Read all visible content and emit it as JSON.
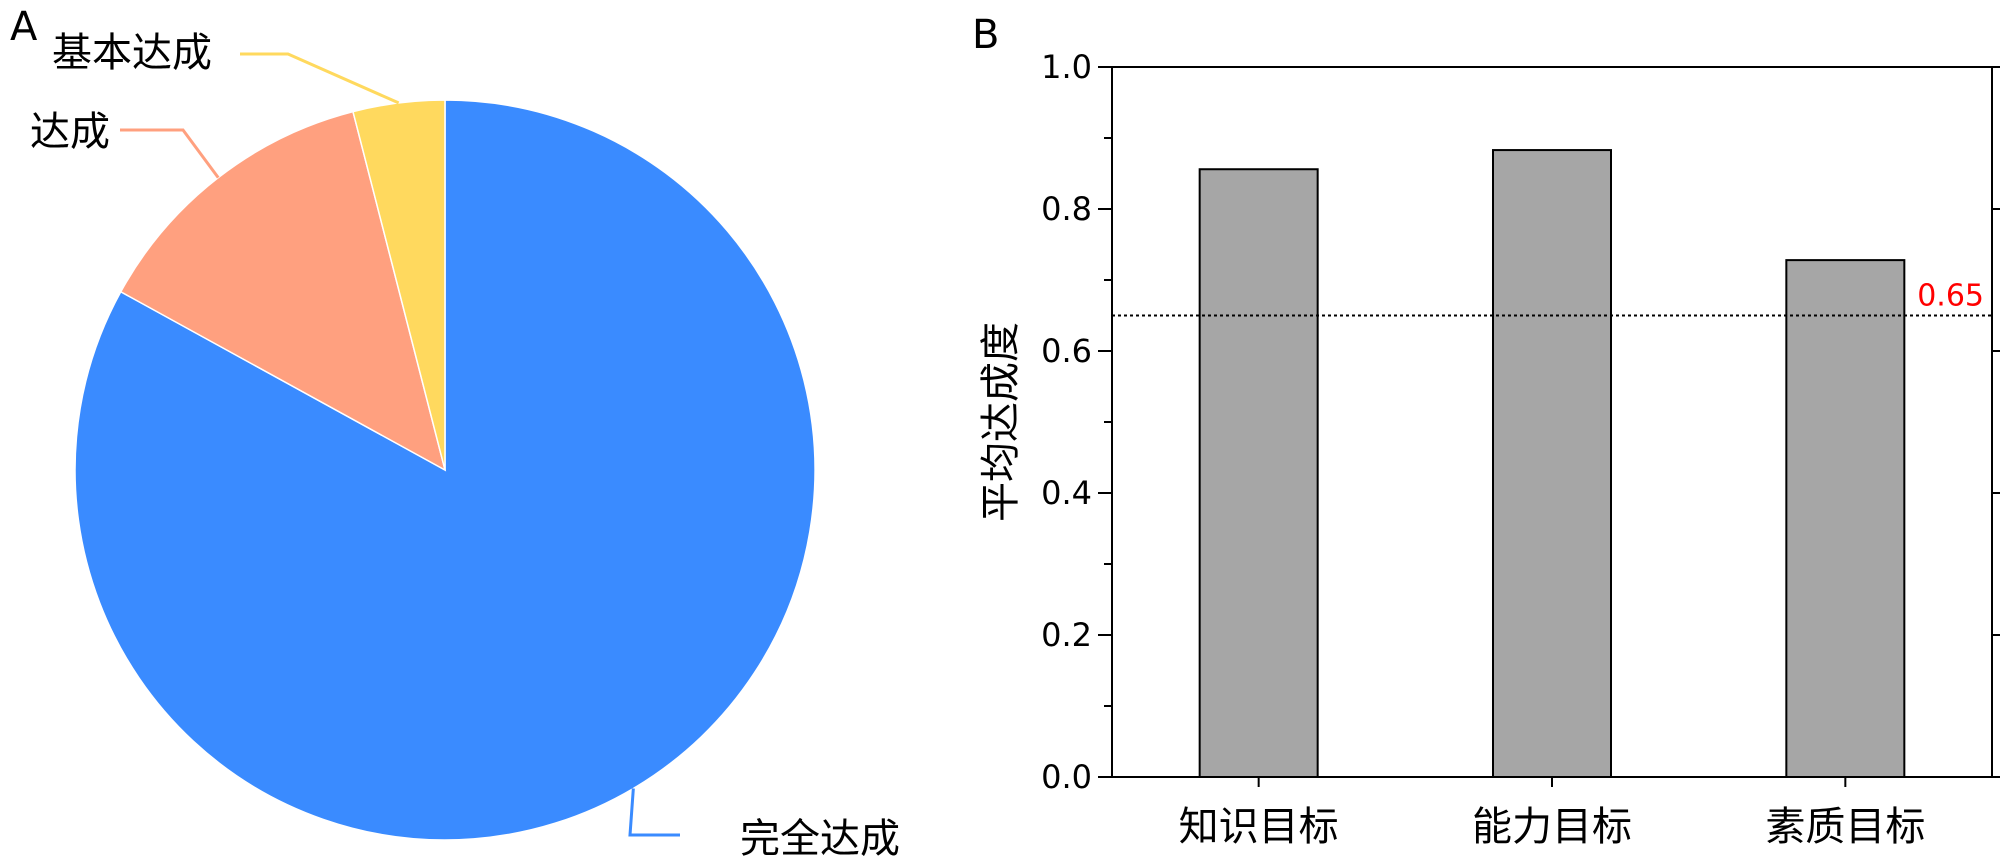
{
  "chart_data": [
    {
      "panel": "A",
      "type": "pie",
      "title": "",
      "start_angle_deg": 0,
      "direction": "clockwise",
      "slices": [
        {
          "label": "完全达成",
          "value": 83,
          "color": "#3a8bff"
        },
        {
          "label": "达成",
          "value": 13,
          "color": "#ffa07f"
        },
        {
          "label": "基本达成",
          "value": 4,
          "color": "#ffd95e"
        }
      ]
    },
    {
      "panel": "B",
      "type": "bar",
      "title": "",
      "xlabel": "",
      "ylabel": "平均达成度",
      "categories": [
        "知识目标",
        "能力目标",
        "素质目标"
      ],
      "values": [
        0.856,
        0.883,
        0.728
      ],
      "bar_color": "#a6a6a6",
      "ylim": [
        0.0,
        1.0
      ],
      "yticks": [
        "0.0",
        "0.2",
        "0.4",
        "0.6",
        "0.8",
        "1.0"
      ],
      "grid": false,
      "reference_line": {
        "value": 0.65,
        "label": "0.65",
        "color": "#ff0000",
        "style": "dotted"
      }
    }
  ]
}
